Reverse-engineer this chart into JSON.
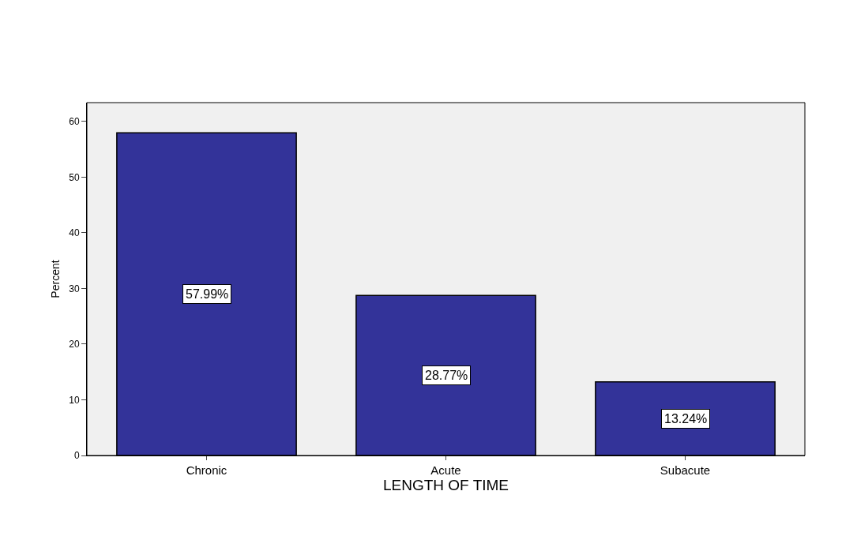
{
  "chart_data": {
    "type": "bar",
    "xlabel": "LENGTH OF TIME",
    "ylabel": "Percent",
    "categories": [
      "Chronic",
      "Acute",
      "Subacute"
    ],
    "values": [
      57.99,
      28.77,
      13.24
    ],
    "value_labels": [
      "57.99%",
      "28.77%",
      "13.24%"
    ],
    "color": "#333399",
    "ylim": [
      0,
      63.4
    ],
    "yticks": [
      0,
      10,
      20,
      30,
      40,
      50,
      60
    ],
    "grid": false,
    "legend": false
  }
}
